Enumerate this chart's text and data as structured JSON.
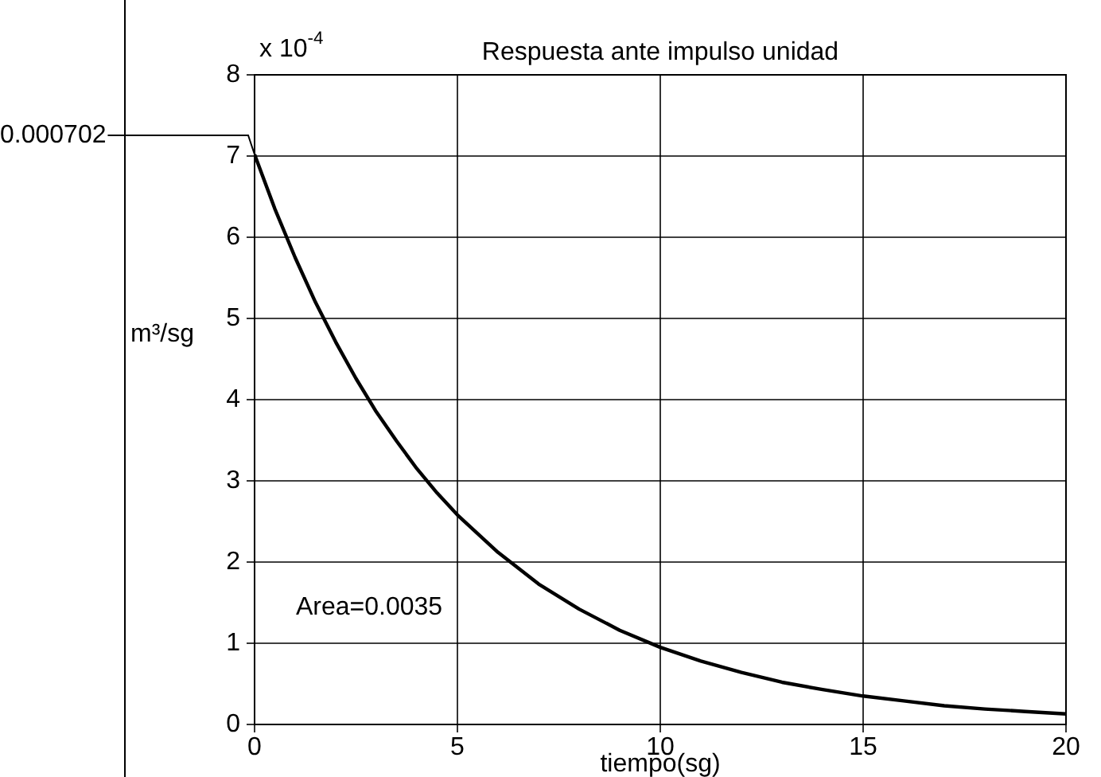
{
  "chart_data": {
    "type": "line",
    "title": "Respuesta ante impulso unidad",
    "xlabel": "tiempo(sg)",
    "ylabel": "m³/sg",
    "annotations": [
      "x 10$^{-4}$",
      {
        "text": "0.000702",
        "x": 0,
        "y": 7.02
      },
      "Area=0.0035"
    ],
    "x": [
      0,
      0.5,
      1,
      1.5,
      2,
      2.5,
      3,
      3.5,
      4,
      4.5,
      5,
      6,
      7,
      8,
      9,
      10,
      11,
      12,
      13,
      14,
      15,
      16,
      17,
      18,
      19,
      20
    ],
    "series": [
      {
        "color": "#000000",
        "values": [
          7.02,
          6.35,
          5.75,
          5.2,
          4.71,
          4.26,
          3.85,
          3.49,
          3.15,
          2.85,
          2.58,
          2.12,
          1.73,
          1.42,
          1.16,
          0.95,
          0.78,
          0.64,
          0.52,
          0.43,
          0.35,
          0.29,
          0.23,
          0.19,
          0.16,
          0.13
        ]
      }
    ],
    "xlim": [
      0,
      20
    ],
    "xticks": [
      0,
      5,
      10,
      15,
      20
    ],
    "ylim": [
      0,
      8
    ],
    "yticks": [
      0,
      1,
      2,
      3,
      4,
      5,
      6,
      7,
      8
    ],
    "grid": true,
    "marker": "none"
  }
}
